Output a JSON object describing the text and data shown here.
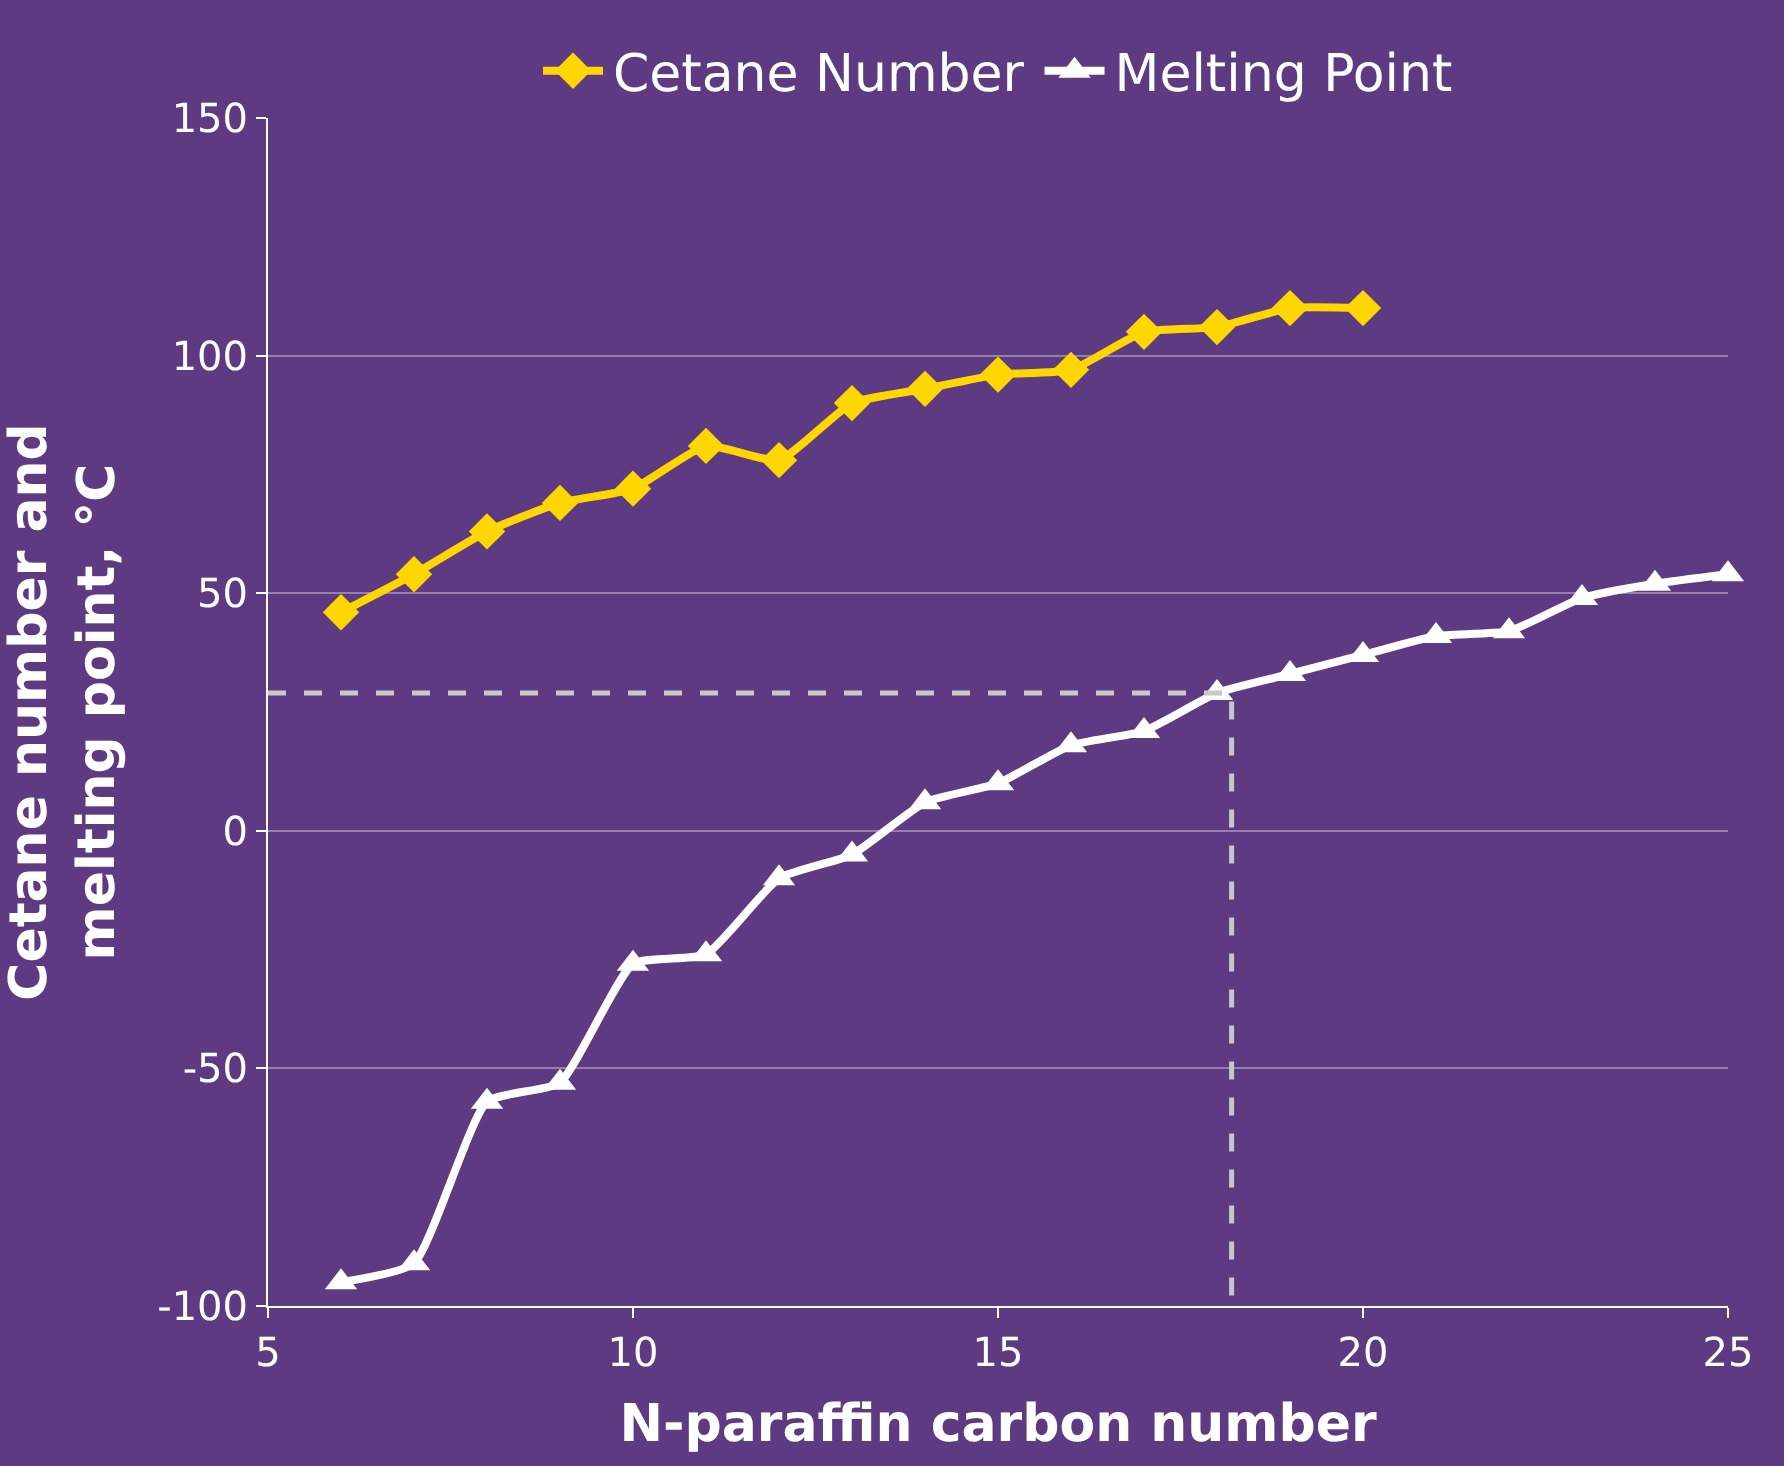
{
  "chart_data": {
    "type": "line",
    "xlabel": "N-paraffin carbon number",
    "ylabel": "Cetane number and melting point, °C",
    "xlim": [
      5,
      25
    ],
    "xticks": [
      5,
      10,
      15,
      20,
      25
    ],
    "ylim": [
      -100,
      150
    ],
    "yticks": [
      -100,
      -50,
      0,
      50,
      100,
      150
    ],
    "grid": "y",
    "legend": "top",
    "line_style": "solid",
    "series": [
      {
        "name": "Cetane Number",
        "color": "#ffd700",
        "marker": "diamond",
        "x": [
          6,
          7,
          8,
          9,
          10,
          11,
          12,
          13,
          14,
          15,
          16,
          17,
          18,
          19,
          20
        ],
        "values": [
          46,
          54,
          63,
          69,
          72,
          81,
          78,
          90,
          93,
          96,
          97,
          105,
          106,
          110,
          110
        ]
      },
      {
        "name": "Melting Point",
        "color": "#ffffff",
        "marker": "triangle",
        "x": [
          6,
          7,
          8,
          9,
          10,
          11,
          12,
          13,
          14,
          15,
          16,
          17,
          18,
          19,
          20,
          21,
          22,
          23,
          24,
          25
        ],
        "values": [
          -95,
          -91,
          -57,
          -53,
          -28,
          -26,
          -10,
          -5,
          6,
          10,
          18,
          21,
          29,
          33,
          37,
          41,
          42,
          49,
          52,
          54
        ]
      },
      {
        "color": "#c8c8c8",
        "marker": "none",
        "line_style": "dashed",
        "x": [
          5,
          18.2,
          18.2
        ],
        "values": [
          29,
          29,
          -100
        ]
      }
    ]
  }
}
